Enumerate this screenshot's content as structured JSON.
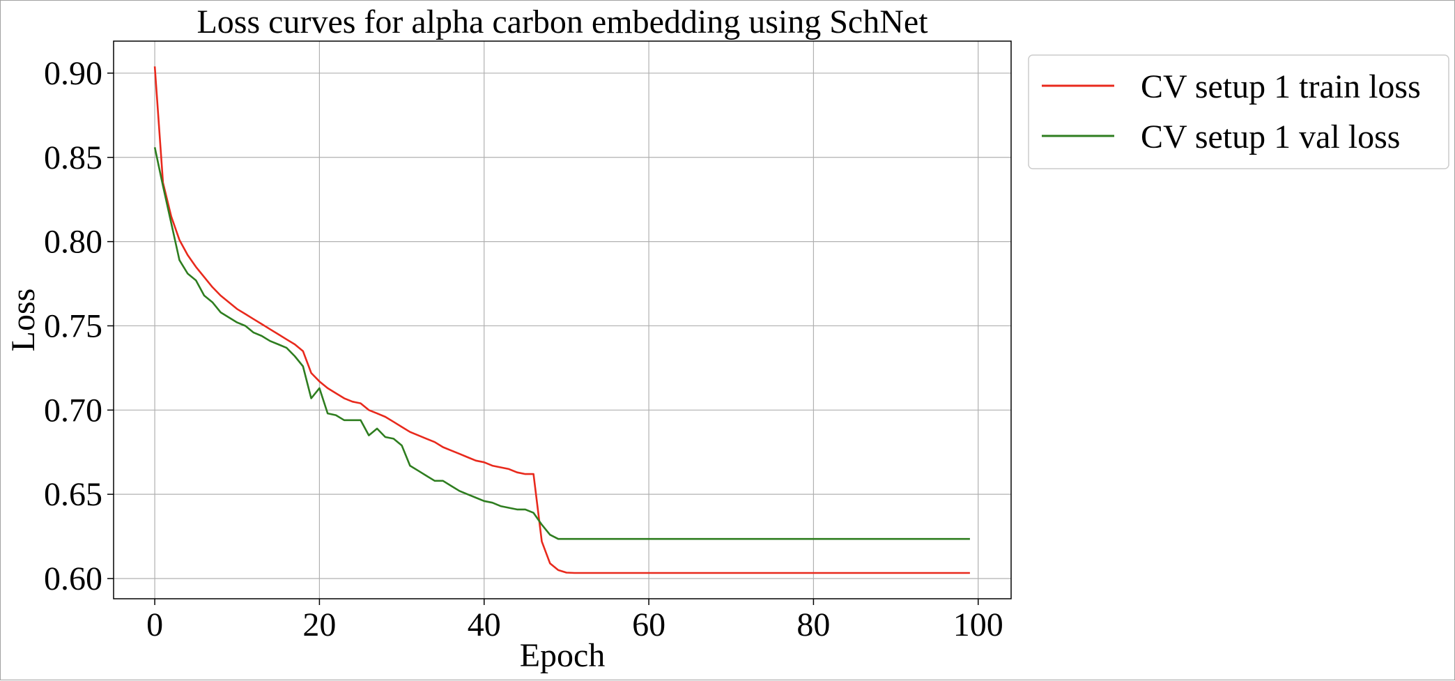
{
  "chart_data": {
    "type": "line",
    "title": "Loss curves for alpha carbon embedding using SchNet",
    "xlabel": "Epoch",
    "ylabel": "Loss",
    "xlim": [
      -5,
      104
    ],
    "ylim": [
      0.588,
      0.919
    ],
    "xticks": [
      0,
      20,
      40,
      60,
      80,
      100
    ],
    "yticks": [
      0.6,
      0.65,
      0.7,
      0.75,
      0.8,
      0.85,
      0.9
    ],
    "xtick_labels": [
      "0",
      "20",
      "40",
      "60",
      "80",
      "100"
    ],
    "ytick_labels": [
      "0.60",
      "0.65",
      "0.70",
      "0.75",
      "0.80",
      "0.85",
      "0.90"
    ],
    "grid": true,
    "legend_position": "outside top-right",
    "series": [
      {
        "name": "CV setup 1 train loss",
        "color": "#e8291c",
        "x": [
          0,
          1,
          2,
          3,
          4,
          5,
          6,
          7,
          8,
          9,
          10,
          11,
          12,
          13,
          14,
          15,
          16,
          17,
          18,
          19,
          20,
          21,
          22,
          23,
          24,
          25,
          26,
          27,
          28,
          29,
          30,
          31,
          32,
          33,
          34,
          35,
          36,
          37,
          38,
          39,
          40,
          41,
          42,
          43,
          44,
          45,
          46,
          47,
          48,
          49,
          50,
          51,
          52,
          53,
          54,
          55,
          56,
          57,
          58,
          59,
          60,
          61,
          62,
          63,
          64,
          65,
          66,
          67,
          68,
          69,
          70,
          71,
          72,
          73,
          74,
          75,
          76,
          77,
          78,
          79,
          80,
          81,
          82,
          83,
          84,
          85,
          86,
          87,
          88,
          89,
          90,
          91,
          92,
          93,
          94,
          95,
          96,
          97,
          98,
          99
        ],
        "values": [
          0.904,
          0.835,
          0.815,
          0.801,
          0.792,
          0.785,
          0.779,
          0.773,
          0.768,
          0.764,
          0.76,
          0.757,
          0.754,
          0.751,
          0.748,
          0.745,
          0.742,
          0.739,
          0.735,
          0.722,
          0.717,
          0.713,
          0.71,
          0.707,
          0.705,
          0.704,
          0.7,
          0.698,
          0.696,
          0.693,
          0.69,
          0.687,
          0.685,
          0.683,
          0.681,
          0.678,
          0.676,
          0.674,
          0.672,
          0.67,
          0.669,
          0.667,
          0.666,
          0.665,
          0.663,
          0.662,
          0.662,
          0.622,
          0.609,
          0.605,
          0.6035,
          0.6033,
          0.6033,
          0.6033,
          0.6033,
          0.6033,
          0.6033,
          0.6033,
          0.6033,
          0.6033,
          0.6033,
          0.6033,
          0.6033,
          0.6033,
          0.6033,
          0.6033,
          0.6033,
          0.6033,
          0.6033,
          0.6033,
          0.6033,
          0.6033,
          0.6033,
          0.6033,
          0.6033,
          0.6033,
          0.6033,
          0.6033,
          0.6033,
          0.6033,
          0.6033,
          0.6033,
          0.6033,
          0.6033,
          0.6033,
          0.6033,
          0.6033,
          0.6033,
          0.6033,
          0.6033,
          0.6033,
          0.6033,
          0.6033,
          0.6033,
          0.6033,
          0.6033,
          0.6033,
          0.6033,
          0.6033,
          0.6033
        ]
      },
      {
        "name": "CV setup 1 val loss",
        "color": "#2e7d1f",
        "x": [
          0,
          1,
          2,
          3,
          4,
          5,
          6,
          7,
          8,
          9,
          10,
          11,
          12,
          13,
          14,
          15,
          16,
          17,
          18,
          19,
          20,
          21,
          22,
          23,
          24,
          25,
          26,
          27,
          28,
          29,
          30,
          31,
          32,
          33,
          34,
          35,
          36,
          37,
          38,
          39,
          40,
          41,
          42,
          43,
          44,
          45,
          46,
          47,
          48,
          49,
          50,
          51,
          52,
          53,
          54,
          55,
          56,
          57,
          58,
          59,
          60,
          61,
          62,
          63,
          64,
          65,
          66,
          67,
          68,
          69,
          70,
          71,
          72,
          73,
          74,
          75,
          76,
          77,
          78,
          79,
          80,
          81,
          82,
          83,
          84,
          85,
          86,
          87,
          88,
          89,
          90,
          91,
          92,
          93,
          94,
          95,
          96,
          97,
          98,
          99
        ],
        "values": [
          0.856,
          0.833,
          0.811,
          0.789,
          0.781,
          0.777,
          0.768,
          0.764,
          0.758,
          0.755,
          0.752,
          0.75,
          0.746,
          0.744,
          0.741,
          0.739,
          0.737,
          0.732,
          0.726,
          0.707,
          0.713,
          0.698,
          0.697,
          0.694,
          0.694,
          0.694,
          0.685,
          0.689,
          0.684,
          0.683,
          0.679,
          0.667,
          0.664,
          0.661,
          0.658,
          0.658,
          0.655,
          0.652,
          0.65,
          0.648,
          0.646,
          0.645,
          0.643,
          0.642,
          0.641,
          0.641,
          0.639,
          0.632,
          0.626,
          0.6235,
          0.6235,
          0.6235,
          0.6235,
          0.6235,
          0.6235,
          0.6235,
          0.6235,
          0.6235,
          0.6235,
          0.6235,
          0.6235,
          0.6235,
          0.6235,
          0.6235,
          0.6235,
          0.6235,
          0.6235,
          0.6235,
          0.6235,
          0.6235,
          0.6235,
          0.6235,
          0.6235,
          0.6235,
          0.6235,
          0.6235,
          0.6235,
          0.6235,
          0.6235,
          0.6235,
          0.6235,
          0.6235,
          0.6235,
          0.6235,
          0.6235,
          0.6235,
          0.6235,
          0.6235,
          0.6235,
          0.6235,
          0.6235,
          0.6235,
          0.6235,
          0.6235,
          0.6235,
          0.6235,
          0.6235,
          0.6235,
          0.6235,
          0.6235
        ]
      }
    ]
  }
}
